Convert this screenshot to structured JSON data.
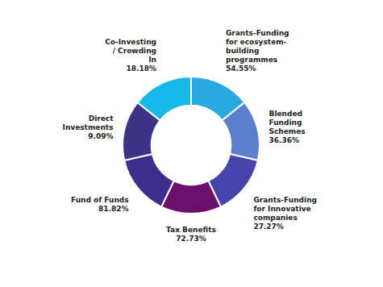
{
  "chart_data": {
    "type": "donut",
    "categories": [
      "Grants-Funding\nfor ecosystem-\nbuilding\nprogrammes\n54.55%",
      "Blended\nFunding\nSchemes\n36.36%",
      "Grants-Funding\nfor Innovative\ncompanies\n27.27%",
      "Tax Benefits\n72.73%",
      "Fund of Funds\n81.82%",
      "Direct\nInvestments\n9.09%",
      "Co-Investing\n/ Crowding\nIn\n18.18%"
    ],
    "values": [
      1,
      1,
      1,
      1,
      1,
      1,
      1
    ],
    "colors": [
      "#29ABE2",
      "#5B7FCC",
      "#4444AA",
      "#6B0F6B",
      "#3D2E8C",
      "#3B3488",
      "#17B8EA"
    ]
  }
}
